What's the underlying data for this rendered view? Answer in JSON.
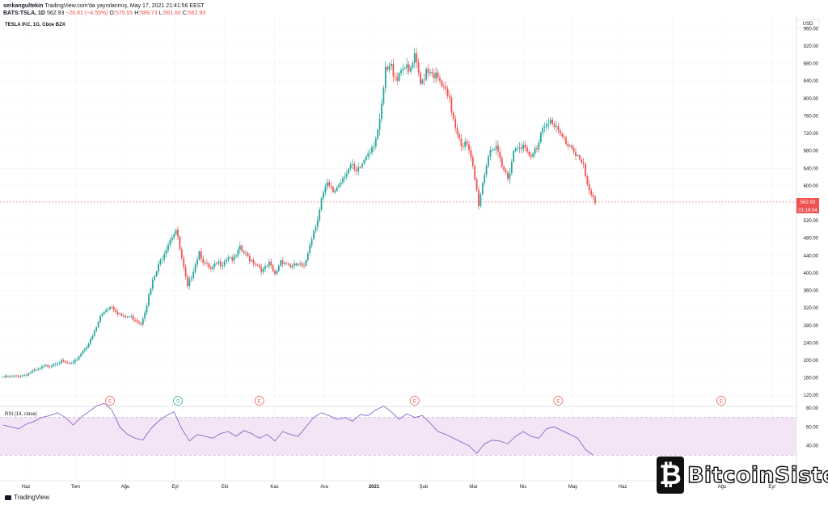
{
  "header": {
    "user": "serkangultekin",
    "published": "TradingView.com'da yayınlanmış, May 17, 2021 21:41:56 EEST",
    "symbol_line": "BATS:TSLA, 1D",
    "last": "562.93",
    "change": "−26.81 (−4.55%)",
    "o_label": "O:",
    "o": "575.55",
    "h_label": "H:",
    "h": "589.73",
    "l_label": "L:",
    "l": "561.60",
    "c_label": "C:",
    "c": "562.93"
  },
  "instrument_title": "TESLA INC, 1G, Cboe BZX",
  "currency": "USD",
  "price_tag": "562.93",
  "countdown_tag": "01:18:04",
  "rsi_label": "RSI (14, close)",
  "footer_logo": "TradingView",
  "watermark": "BitcoinSistemi",
  "colors": {
    "up": "#26a69a",
    "down": "#ef5350",
    "rsi_line": "#7e57c2",
    "rsi_band": "#f3e5f5",
    "event": "#ef5350",
    "split": "#26a69a"
  },
  "chart_data": [
    {
      "type": "candlestick",
      "title": "TESLA INC, 1G, Cboe BZX",
      "ylim": [
        100,
        970
      ],
      "yticks": [
        "960.00",
        "920.00",
        "880.00",
        "840.00",
        "800.00",
        "760.00",
        "720.00",
        "680.00",
        "640.00",
        "600.00",
        "560.00",
        "520.00",
        "480.00",
        "440.00",
        "400.00",
        "360.00",
        "320.00",
        "280.00",
        "240.00",
        "200.00",
        "160.00",
        "120.00"
      ],
      "xticks": [
        "Haz",
        "Tem",
        "Ağu",
        "Eyl",
        "Ekl",
        "Kas",
        "Ara",
        "2021",
        "Şub",
        "Mar",
        "Nis",
        "May",
        "Haz",
        "Tem",
        "Ağu",
        "Eyl"
      ],
      "grid": true,
      "last_price": 562.93,
      "price_series": [
        [
          0,
          162
        ],
        [
          3,
          162
        ],
        [
          6,
          163
        ],
        [
          9,
          165
        ],
        [
          12,
          168
        ],
        [
          15,
          175
        ],
        [
          18,
          178
        ],
        [
          21,
          186
        ],
        [
          24,
          188
        ],
        [
          27,
          195
        ],
        [
          30,
          197
        ],
        [
          33,
          193
        ],
        [
          36,
          192
        ],
        [
          39,
          210
        ],
        [
          42,
          228
        ],
        [
          45,
          245
        ],
        [
          48,
          275
        ],
        [
          50,
          300
        ],
        [
          53,
          318
        ],
        [
          56,
          325
        ],
        [
          59,
          310
        ],
        [
          62,
          298
        ],
        [
          65,
          300
        ],
        [
          68,
          295
        ],
        [
          71,
          285
        ],
        [
          74,
          330
        ],
        [
          77,
          380
        ],
        [
          80,
          415
        ],
        [
          83,
          450
        ],
        [
          86,
          480
        ],
        [
          89,
          500
        ],
        [
          92,
          430
        ],
        [
          95,
          365
        ],
        [
          98,
          410
        ],
        [
          101,
          450
        ],
        [
          104,
          420
        ],
        [
          107,
          405
        ],
        [
          110,
          420
        ],
        [
          113,
          425
        ],
        [
          116,
          440
        ],
        [
          119,
          430
        ],
        [
          122,
          455
        ],
        [
          125,
          440
        ],
        [
          128,
          430
        ],
        [
          131,
          420
        ],
        [
          134,
          405
        ],
        [
          137,
          420
        ],
        [
          140,
          395
        ],
        [
          143,
          430
        ],
        [
          146,
          423
        ],
        [
          149,
          413
        ],
        [
          152,
          420
        ],
        [
          155,
          410
        ],
        [
          158,
          470
        ],
        [
          161,
          510
        ],
        [
          164,
          570
        ],
        [
          167,
          600
        ],
        [
          170,
          585
        ],
        [
          173,
          605
        ],
        [
          176,
          630
        ],
        [
          179,
          645
        ],
        [
          182,
          625
        ],
        [
          185,
          650
        ],
        [
          188,
          680
        ],
        [
          191,
          700
        ],
        [
          194,
          740
        ],
        [
          197,
          860
        ],
        [
          200,
          870
        ],
        [
          203,
          850
        ],
        [
          206,
          880
        ],
        [
          209,
          855
        ],
        [
          212,
          890
        ],
        [
          215,
          830
        ],
        [
          218,
          870
        ],
        [
          221,
          865
        ],
        [
          224,
          840
        ],
        [
          227,
          820
        ],
        [
          230,
          790
        ],
        [
          233,
          740
        ],
        [
          236,
          700
        ],
        [
          239,
          690
        ],
        [
          242,
          640
        ],
        [
          245,
          560
        ],
        [
          248,
          630
        ],
        [
          251,
          690
        ],
        [
          254,
          680
        ],
        [
          257,
          640
        ],
        [
          260,
          620
        ],
        [
          263,
          680
        ],
        [
          266,
          700
        ],
        [
          269,
          680
        ],
        [
          272,
          660
        ],
        [
          275,
          690
        ],
        [
          278,
          740
        ],
        [
          281,
          755
        ],
        [
          284,
          730
        ],
        [
          287,
          715
        ],
        [
          290,
          700
        ],
        [
          293,
          690
        ],
        [
          296,
          670
        ],
        [
          299,
          640
        ],
        [
          302,
          580
        ],
        [
          305,
          562.93
        ]
      ]
    },
    {
      "type": "line",
      "title": "RSI (14, close)",
      "ylim": [
        20,
        80
      ],
      "yticks": [
        "80.00",
        "60.00",
        "40.00"
      ],
      "band": [
        30,
        70
      ],
      "rsi_series": [
        [
          0,
          62
        ],
        [
          4,
          60
        ],
        [
          8,
          58
        ],
        [
          12,
          63
        ],
        [
          16,
          66
        ],
        [
          20,
          70
        ],
        [
          24,
          72
        ],
        [
          28,
          75
        ],
        [
          32,
          70
        ],
        [
          36,
          62
        ],
        [
          40,
          70
        ],
        [
          44,
          76
        ],
        [
          48,
          82
        ],
        [
          52,
          85
        ],
        [
          56,
          78
        ],
        [
          60,
          60
        ],
        [
          64,
          52
        ],
        [
          68,
          48
        ],
        [
          72,
          46
        ],
        [
          76,
          58
        ],
        [
          80,
          66
        ],
        [
          84,
          72
        ],
        [
          88,
          76
        ],
        [
          92,
          58
        ],
        [
          96,
          45
        ],
        [
          100,
          52
        ],
        [
          104,
          50
        ],
        [
          108,
          48
        ],
        [
          112,
          53
        ],
        [
          116,
          55
        ],
        [
          120,
          50
        ],
        [
          124,
          56
        ],
        [
          128,
          53
        ],
        [
          132,
          48
        ],
        [
          136,
          52
        ],
        [
          140,
          45
        ],
        [
          144,
          55
        ],
        [
          148,
          52
        ],
        [
          152,
          50
        ],
        [
          156,
          60
        ],
        [
          160,
          70
        ],
        [
          164,
          75
        ],
        [
          168,
          72
        ],
        [
          172,
          68
        ],
        [
          176,
          70
        ],
        [
          180,
          66
        ],
        [
          184,
          73
        ],
        [
          188,
          72
        ],
        [
          192,
          78
        ],
        [
          196,
          82
        ],
        [
          200,
          76
        ],
        [
          204,
          68
        ],
        [
          208,
          74
        ],
        [
          212,
          70
        ],
        [
          216,
          72
        ],
        [
          220,
          64
        ],
        [
          224,
          55
        ],
        [
          228,
          52
        ],
        [
          232,
          48
        ],
        [
          236,
          44
        ],
        [
          240,
          40
        ],
        [
          244,
          32
        ],
        [
          248,
          42
        ],
        [
          252,
          46
        ],
        [
          256,
          45
        ],
        [
          260,
          42
        ],
        [
          264,
          50
        ],
        [
          268,
          55
        ],
        [
          272,
          50
        ],
        [
          276,
          48
        ],
        [
          280,
          58
        ],
        [
          284,
          60
        ],
        [
          288,
          56
        ],
        [
          292,
          52
        ],
        [
          296,
          48
        ],
        [
          300,
          36
        ],
        [
          304,
          30
        ]
      ]
    }
  ],
  "events": [
    {
      "label": "E",
      "x": 55
    },
    {
      "label": "S",
      "x": 90
    },
    {
      "label": "E",
      "x": 132
    },
    {
      "label": "E",
      "x": 212
    },
    {
      "label": "E",
      "x": 286
    },
    {
      "label": "E",
      "x": 370
    }
  ]
}
